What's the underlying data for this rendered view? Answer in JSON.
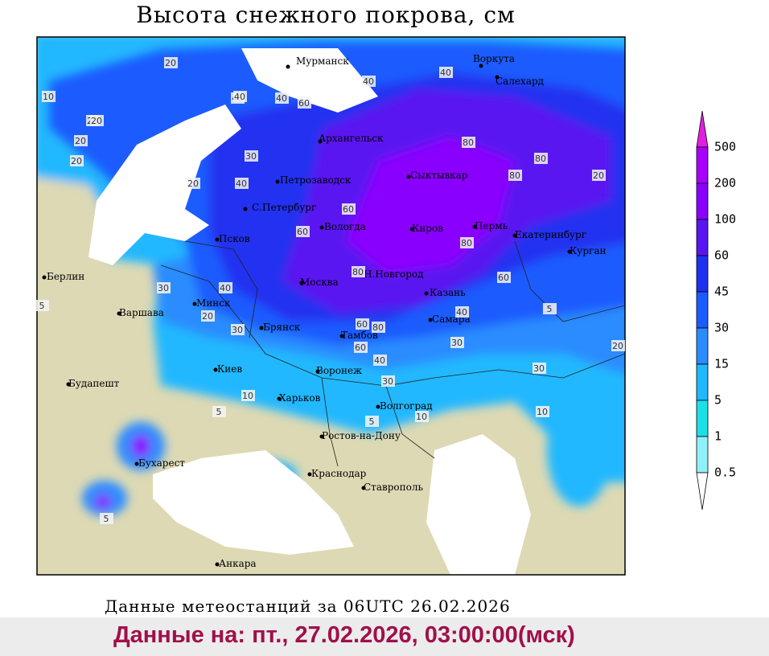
{
  "header": {
    "title": "Высота снежного покрова, см"
  },
  "map": {
    "cities": [
      "Мурманск",
      "Воркута",
      "Салехард",
      "Архангельск",
      "Петрозаводск",
      "Сыктывкар",
      "С.Петербург",
      "Вологда",
      "Киров",
      "Пермь",
      "Екатеринбург",
      "Псков",
      "Курган",
      "Берлин",
      "Москва",
      "Н.Новгород",
      "Казань",
      "Минск",
      "Варшава",
      "Самара",
      "Брянск",
      "Тамбов",
      "Киев",
      "Воронеж",
      "Будапешт",
      "Харьков",
      "Волгоград",
      "Ростов-на-Дону",
      "Бухарест",
      "Краснодар",
      "Ставрополь",
      "Анкара"
    ],
    "contour_labels": [
      "20",
      "40",
      "60",
      "40",
      "20",
      "20",
      "20",
      "30",
      "20",
      "40",
      "40",
      "80",
      "80",
      "80",
      "60",
      "60",
      "80",
      "80",
      "80",
      "60",
      "60",
      "30",
      "40",
      "40",
      "20",
      "30",
      "60",
      "40",
      "30",
      "30",
      "30",
      "20",
      "10",
      "5",
      "5",
      "10",
      "10",
      "5",
      "5",
      "20",
      "20",
      "40",
      "40",
      "10",
      "5"
    ]
  },
  "legend": {
    "levels": [
      {
        "label": "500",
        "color": "#a800ff"
      },
      {
        "label": "200",
        "color": "#8a00ff"
      },
      {
        "label": "100",
        "color": "#5a14f0"
      },
      {
        "label": "60",
        "color": "#2030f0"
      },
      {
        "label": "45",
        "color": "#1a5cff"
      },
      {
        "label": "30",
        "color": "#2a8cff"
      },
      {
        "label": "15",
        "color": "#20b8ff"
      },
      {
        "label": "5",
        "color": "#1ce0e8"
      },
      {
        "label": "1",
        "color": "#90f0f8"
      },
      {
        "label": "0.5",
        "color": "#ffffff"
      }
    ],
    "top_color": "#e020e0"
  },
  "footer": {
    "source": "Данные метеостанций за 06UTC 26.02.2026",
    "timestamp": "Данные на: пт., 27.02.2026, 03:00:00(мск)"
  }
}
